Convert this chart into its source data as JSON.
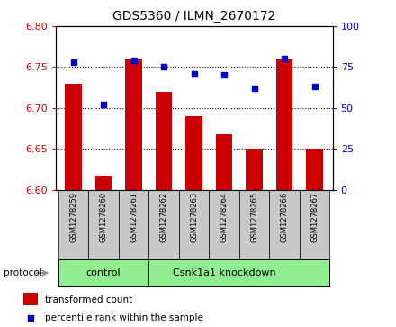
{
  "title": "GDS5360 / ILMN_2670172",
  "samples": [
    "GSM1278259",
    "GSM1278260",
    "GSM1278261",
    "GSM1278262",
    "GSM1278263",
    "GSM1278264",
    "GSM1278265",
    "GSM1278266",
    "GSM1278267"
  ],
  "transformed_counts": [
    6.73,
    6.617,
    6.76,
    6.72,
    6.69,
    6.668,
    6.65,
    6.76,
    6.65
  ],
  "percentile_ranks": [
    78,
    52,
    79,
    75,
    71,
    70,
    62,
    80,
    63
  ],
  "ylim_left": [
    6.6,
    6.8
  ],
  "ylim_right": [
    0,
    100
  ],
  "yticks_left": [
    6.6,
    6.65,
    6.7,
    6.75,
    6.8
  ],
  "yticks_right": [
    0,
    25,
    50,
    75,
    100
  ],
  "bar_color": "#cc0000",
  "dot_color": "#0000cc",
  "n_control": 3,
  "n_knockdown": 6,
  "control_label": "control",
  "knockdown_label": "Csnk1a1 knockdown",
  "protocol_label": "protocol",
  "legend_bar_label": "transformed count",
  "legend_dot_label": "percentile rank within the sample",
  "group_bg_color": "#90ee90",
  "tick_area_bg": "#c8c8c8",
  "base_value": 6.6
}
